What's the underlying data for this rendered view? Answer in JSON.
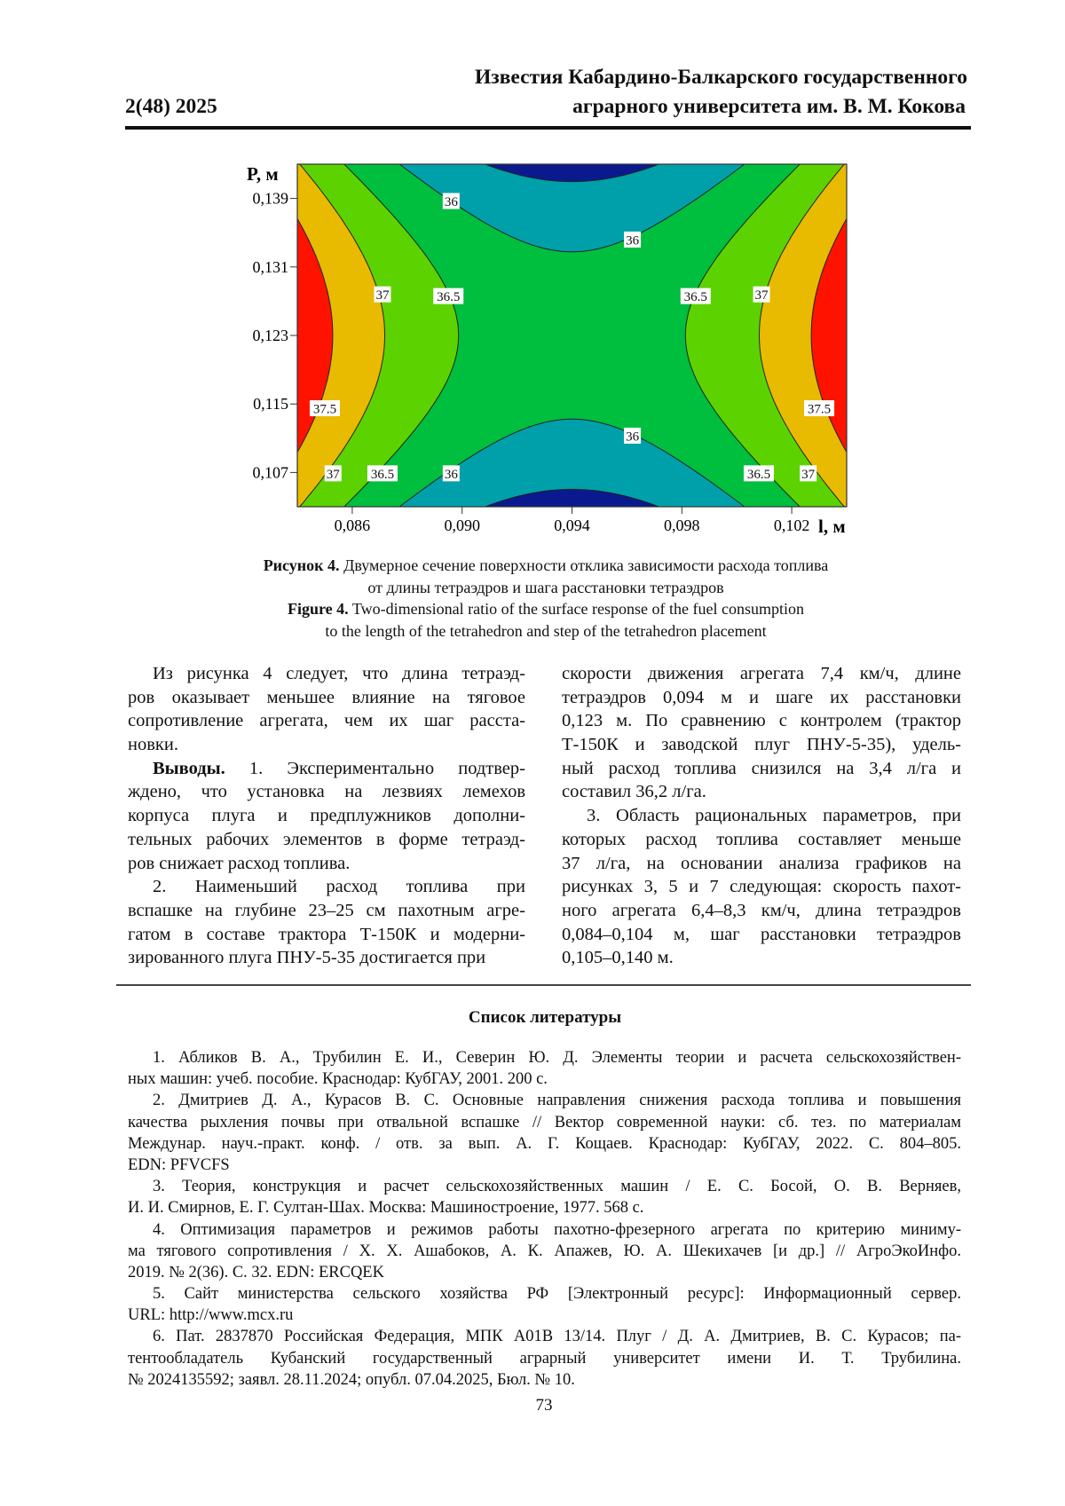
{
  "header": {
    "journal_line1": "Известия Кабардино-Балкарского государственного",
    "journal_line2": "аграрного университета им. В. М. Кокова",
    "issue": "2(48) 2025"
  },
  "chart_data": {
    "type": "contour",
    "xlabel": "l, м",
    "ylabel": "P, м",
    "xlim": [
      0.084,
      0.104
    ],
    "ylim": [
      0.103,
      0.143
    ],
    "x_ticks": [
      0.086,
      0.09,
      0.094,
      0.098,
      0.102
    ],
    "x_tick_labels": [
      "0,086",
      "0,090",
      "0,094",
      "0,098",
      "0,102"
    ],
    "y_ticks": [
      0.107,
      0.115,
      0.123,
      0.131,
      0.139
    ],
    "y_tick_labels": [
      "0,107",
      "0,115",
      "0,123",
      "0,131",
      "0,139"
    ],
    "levels": [
      35.5,
      36,
      36.5,
      37,
      37.5
    ],
    "band_colors": {
      "below_35.5": "#0a1a8e",
      "35.5_36": "#00a0aa",
      "36_36.5": "#00be3e",
      "36.5_37": "#5cd300",
      "37_37.5": "#e8ba00",
      "above_37.5": "#ff1200"
    },
    "minimum_approx": {
      "l": 0.094,
      "P": 0.123,
      "value": 36.2
    },
    "contour_labels": [
      {
        "text": "36",
        "l": 0.0896,
        "P": 0.1387
      },
      {
        "text": "36",
        "l": 0.0962,
        "P": 0.1342
      },
      {
        "text": "37",
        "l": 0.0871,
        "P": 0.1278
      },
      {
        "text": "36.5",
        "l": 0.0895,
        "P": 0.1276
      },
      {
        "text": "36.5",
        "l": 0.0985,
        "P": 0.1276
      },
      {
        "text": "37",
        "l": 0.1009,
        "P": 0.1278
      },
      {
        "text": "37.5",
        "l": 0.085,
        "P": 0.1145
      },
      {
        "text": "37.5",
        "l": 0.103,
        "P": 0.1145
      },
      {
        "text": "36",
        "l": 0.0962,
        "P": 0.1113
      },
      {
        "text": "37",
        "l": 0.0853,
        "P": 0.1069
      },
      {
        "text": "36.5",
        "l": 0.0871,
        "P": 0.1069
      },
      {
        "text": "36",
        "l": 0.0896,
        "P": 0.1069
      },
      {
        "text": "36.5",
        "l": 0.1008,
        "P": 0.1069
      },
      {
        "text": "37",
        "l": 0.1026,
        "P": 0.1069
      }
    ]
  },
  "caption": {
    "ru_label": "Рисунок 4.",
    "ru_line1": " Двумерное сечение поверхности отклика зависимости расхода топлива",
    "ru_line2": "от длины тетраэдров и шага расстановки тетраэдров",
    "en_label": "Figure 4.",
    "en_line1": " Two-dimensional ratio of the surface response of the fuel consumption",
    "en_line2": "to the length of the tetrahedron and step of the tetrahedron placement"
  },
  "body": {
    "left": [
      [
        "Из рисунка 4 следует, что длина тетраэд-",
        "ров оказывает меньшее влияние на тяговое",
        "сопротивление агрегата, чем их шаг расста-",
        "новки."
      ],
      [
        "Выводы.|| 1. Экспериментально подтвер-",
        "ждено, что установка на лезвиях лемехов",
        "корпуса плуга и предплужников дополни-",
        "тельных рабочих элементов в форме тетраэд-",
        "ров снижает расход топлива."
      ],
      [
        "2. Наименьший расход топлива при",
        "вспашке на глубине 23–25 см пахотным агре-",
        "гатом в составе трактора Т-150К и модерни-",
        "зированного плуга ПНУ-5-35 достигается при"
      ]
    ],
    "right": [
      [
        "скорости движения агрегата 7,4 км/ч, длине",
        "тетраэдров 0,094 м и шаге их расстановки",
        "0,123 м. По сравнению с контролем (трактор",
        "Т-150К и заводской плуг ПНУ-5-35), удель-",
        "ный расход топлива снизился на 3,4 л/га и",
        "составил 36,2 л/га."
      ],
      [
        "3. Область рациональных параметров, при",
        "которых расход топлива составляет меньше",
        "37 л/га, на основании анализа графиков на",
        "рисунках 3, 5 и 7 следующая: скорость пахот-",
        "ного агрегата 6,4–8,3 км/ч, длина тетраэдров",
        "0,084–0,104 м, шаг расстановки тетраэдров",
        "0,105–0,140 м."
      ]
    ]
  },
  "references": {
    "title": "Список литературы",
    "items": [
      [
        "1. Абликов В. А., Трубилин Е. И., Северин Ю. Д. Элементы теории и расчета сельскохозяйствен-",
        "ных машин: учеб. пособие. Краснодар: КубГАУ, 2001. 200 с."
      ],
      [
        "2. Дмитриев Д. А., Курасов В. С. Основные направления снижения расхода топлива и повышения",
        "качества рыхления почвы при отвальной вспашке // Вектор современной науки: сб. тез. по материалам",
        "Междунар. науч.-практ. конф. / отв. за вып. А. Г. Кощаев. Краснодар: КубГАУ, 2022. С. 804–805.",
        "EDN: PFVCFS"
      ],
      [
        "3. Теория, конструкция и расчет сельскохозяйственных машин / Е. С. Босой, О. В. Верняев,",
        "И. И. Смирнов, Е. Г. Султан-Шах. Москва: Машиностроение, 1977. 568 с."
      ],
      [
        "4. Оптимизация параметров и режимов работы пахотно-фрезерного агрегата по критерию миниму-",
        "ма тягового сопротивления / Х. Х. Ашабоков, А. К. Апажев, Ю. А. Шекихачев [и др.] // АгроЭкоИнфо.",
        "2019. № 2(36). С. 32. EDN: ERCQEK"
      ],
      [
        "5. Сайт министерства сельского хозяйства РФ [Электронный ресурс]: Информационный сервер.",
        "URL: http://www.mcx.ru"
      ],
      [
        "6. Пат. 2837870 Российская Федерация, МПК А01В 13/14. Плуг / Д. А. Дмитриев, В. С. Курасов; па-",
        "тентообладатель Кубанский государственный аграрный университет имени И. Т. Трубилина.",
        "№ 2024135592; заявл. 28.11.2024; опубл. 07.04.2025, Бюл. № 10."
      ]
    ]
  },
  "page_number": "73"
}
